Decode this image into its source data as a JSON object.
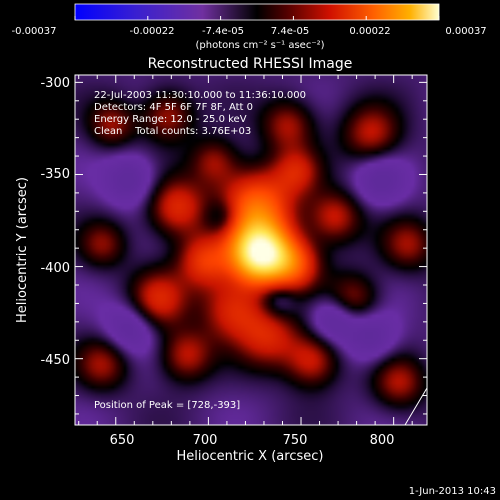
{
  "chart_data": {
    "type": "heatmap",
    "title": "Reconstructed RHESSI Image",
    "xlabel": "Heliocentric X (arcsec)",
    "ylabel": "Heliocentric Y (arcsec)",
    "xlim": [
      628,
      818
    ],
    "ylim": [
      -486,
      -296
    ],
    "x_ticks": [
      650,
      700,
      750,
      800
    ],
    "y_ticks": [
      -300,
      -350,
      -400,
      -450
    ],
    "annotations": [
      "22-Jul-2003 11:30:10.000 to 11:36:10.000",
      "Detectors: 4F 5F 6F 7F 8F, Att 0",
      "Energy Range: 12.0 - 25.0 keV",
      "Clean    Total counts: 3.76E+03"
    ],
    "peak_label": "Position of Peak = [728,-393]",
    "peak": {
      "x": 728,
      "y": -393
    },
    "colorbar": {
      "tick_labels": [
        "-0.00037",
        "-0.00022",
        "-7.4e-05",
        "7.4e-05",
        "0.00022",
        "0.00037"
      ],
      "unit": "(photons cm⁻² s⁻¹ asec⁻²)",
      "range": [
        -0.00037,
        0.00037
      ]
    },
    "footer_date": "1-Jun-2013 10:43",
    "colors": {
      "background": "#000000",
      "negative_low": "#0000ff",
      "negative_mid": "#5a2a9a",
      "zero": "#000000",
      "positive_mid": "#e02000",
      "positive_high": "#ff9a00",
      "peak": "#ffffe0"
    }
  }
}
